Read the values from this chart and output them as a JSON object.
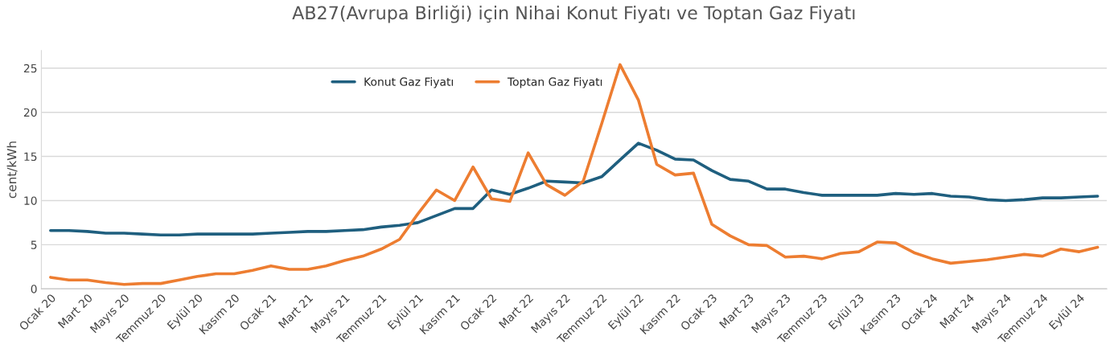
{
  "chart_data": {
    "type": "line",
    "title": "AB27(Avrupa Birliği) için Nihai Konut Fiyatı ve Toptan Gaz Fiyatı",
    "ylabel": "cent/kWh",
    "categories": [
      "Ocak 20",
      null,
      "Mart 20",
      null,
      "Mayıs 20",
      null,
      "Temmuz 20",
      null,
      "Eylül 20",
      null,
      "Kasım 20",
      null,
      "Ocak 21",
      null,
      "Mart 21",
      null,
      "Mayıs 21",
      null,
      "Temmuz 21",
      null,
      "Eylül 21",
      null,
      "Kasım 21",
      null,
      "Ocak 22",
      null,
      "Mart 22",
      null,
      "Mayıs 22",
      null,
      "Temmuz 22",
      null,
      "Eylül 22",
      null,
      "Kasım 22",
      null,
      "Ocak 23",
      null,
      "Mart 23",
      null,
      "Mayıs 23",
      null,
      "Temmuz 23",
      null,
      "Eylül 23",
      null,
      "Kasım 23",
      null,
      "Ocak 24",
      null,
      "Mart 24",
      null,
      "Mayıs 24",
      null,
      "Temmuz 24",
      null,
      "Eylül 24",
      null
    ],
    "series": [
      {
        "name": "Konut Gaz Fiyatı",
        "color": "#1f5f7f",
        "values": [
          6.6,
          6.6,
          6.5,
          6.3,
          6.3,
          6.2,
          6.1,
          6.1,
          6.2,
          6.2,
          6.2,
          6.2,
          6.3,
          6.4,
          6.5,
          6.5,
          6.6,
          6.7,
          7.0,
          7.2,
          7.5,
          8.3,
          9.1,
          9.1,
          11.2,
          10.7,
          11.4,
          12.2,
          12.1,
          12.0,
          12.7,
          14.6,
          16.5,
          15.7,
          14.7,
          14.6,
          13.4,
          12.4,
          12.2,
          11.3,
          11.3,
          10.9,
          10.6,
          10.6,
          10.6,
          10.6,
          10.8,
          10.7,
          10.8,
          10.5,
          10.4,
          10.1,
          10.0,
          10.1,
          10.3,
          10.3,
          10.4,
          10.5
        ]
      },
      {
        "name": "Toptan Gaz Fiyatı",
        "color": "#ed7d31",
        "values": [
          1.3,
          1.0,
          1.0,
          0.7,
          0.5,
          0.6,
          0.6,
          1.0,
          1.4,
          1.7,
          1.7,
          2.1,
          2.6,
          2.2,
          2.2,
          2.6,
          3.2,
          3.7,
          4.5,
          5.6,
          8.5,
          11.2,
          10.0,
          13.8,
          10.2,
          9.9,
          15.4,
          11.8,
          10.6,
          12.2,
          18.7,
          25.4,
          21.4,
          14.1,
          12.9,
          13.1,
          7.3,
          6.0,
          5.0,
          4.9,
          3.6,
          3.7,
          3.4,
          4.0,
          4.2,
          5.3,
          5.2,
          4.1,
          3.4,
          2.9,
          3.1,
          3.3,
          3.6,
          3.9,
          3.7,
          4.5,
          4.2,
          4.7
        ]
      }
    ],
    "ylim": [
      0,
      27
    ],
    "yticks": [
      0,
      5,
      10,
      15,
      20,
      25
    ],
    "grid": "y",
    "legend": "top",
    "marker": "none",
    "line_style": "solid"
  }
}
